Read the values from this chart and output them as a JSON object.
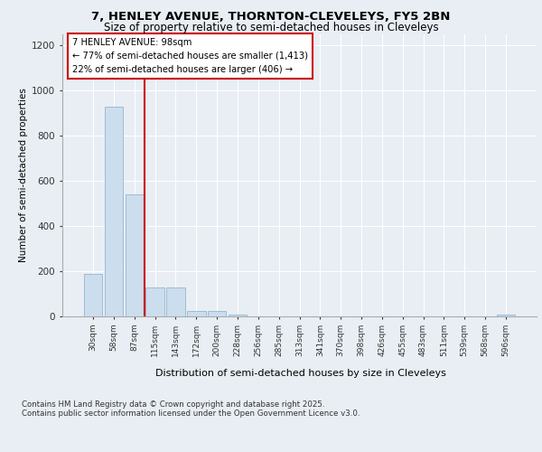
{
  "title1": "7, HENLEY AVENUE, THORNTON-CLEVELEYS, FY5 2BN",
  "title2": "Size of property relative to semi-detached houses in Cleveleys",
  "xlabel": "Distribution of semi-detached houses by size in Cleveleys",
  "ylabel": "Number of semi-detached properties",
  "categories": [
    "30sqm",
    "58sqm",
    "87sqm",
    "115sqm",
    "143sqm",
    "172sqm",
    "200sqm",
    "228sqm",
    "256sqm",
    "285sqm",
    "313sqm",
    "341sqm",
    "370sqm",
    "398sqm",
    "426sqm",
    "455sqm",
    "483sqm",
    "511sqm",
    "539sqm",
    "568sqm",
    "596sqm"
  ],
  "values": [
    190,
    930,
    540,
    130,
    130,
    25,
    25,
    10,
    0,
    0,
    0,
    0,
    0,
    0,
    0,
    0,
    0,
    0,
    0,
    0,
    10
  ],
  "bar_color": "#ccdded",
  "bar_edge_color": "#9bbdd6",
  "red_line_x": 2.5,
  "annotation_text": "7 HENLEY AVENUE: 98sqm\n← 77% of semi-detached houses are smaller (1,413)\n22% of semi-detached houses are larger (406) →",
  "annotation_box_color": "#ffffff",
  "annotation_box_edge": "#cc0000",
  "vline_color": "#cc0000",
  "bg_color": "#e8eef4",
  "plot_bg_color": "#e8eef4",
  "grid_color": "#ffffff",
  "ylim": [
    0,
    1250
  ],
  "yticks": [
    0,
    200,
    400,
    600,
    800,
    1000,
    1200
  ],
  "footer": "Contains HM Land Registry data © Crown copyright and database right 2025.\nContains public sector information licensed under the Open Government Licence v3.0."
}
